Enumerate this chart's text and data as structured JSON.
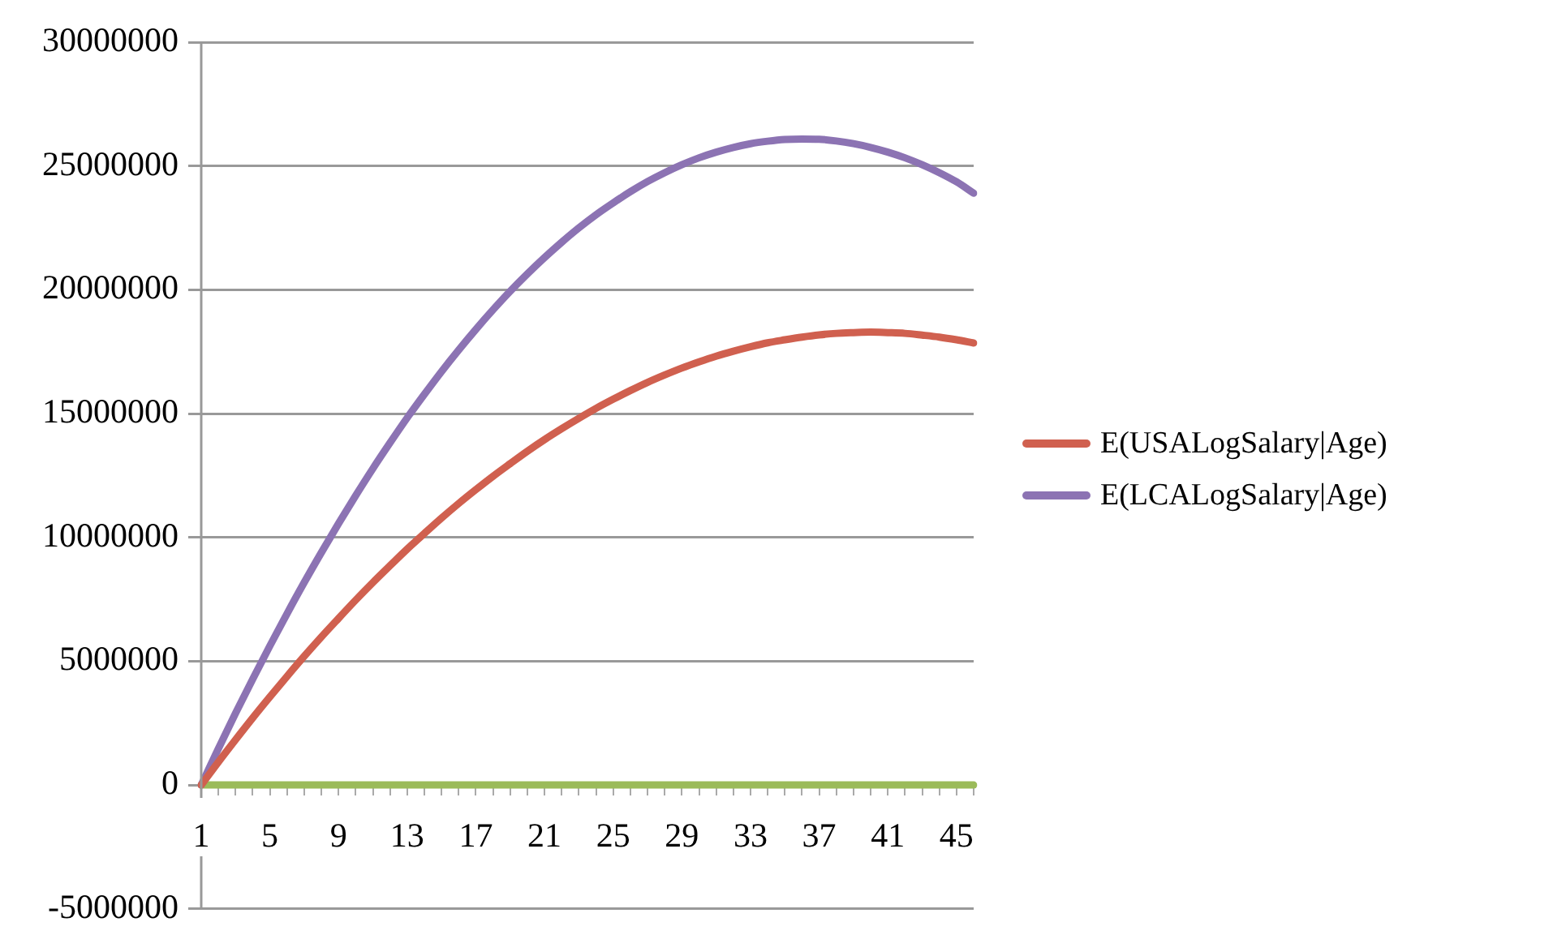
{
  "chart_data": {
    "type": "line",
    "categories": [
      "1",
      null,
      null,
      null,
      "5",
      null,
      null,
      null,
      "9",
      null,
      null,
      null,
      "13",
      null,
      null,
      null,
      "17",
      null,
      null,
      null,
      "21",
      null,
      null,
      null,
      "25",
      null,
      null,
      null,
      "29",
      null,
      null,
      null,
      "33",
      null,
      null,
      null,
      "37",
      null,
      null,
      null,
      "41",
      null,
      null,
      null,
      "45",
      null
    ],
    "series": [
      {
        "name": "E(USALogSalary|Age)",
        "color": "#d0604f",
        "values": [
          0,
          930000,
          1830000,
          2710000,
          3560000,
          4390000,
          5200000,
          5980000,
          6730000,
          7470000,
          8180000,
          8860000,
          9530000,
          10160000,
          10780000,
          11370000,
          11930000,
          12470000,
          12980000,
          13480000,
          13950000,
          14390000,
          14810000,
          15210000,
          15580000,
          15930000,
          16260000,
          16560000,
          16840000,
          17090000,
          17320000,
          17520000,
          17700000,
          17860000,
          17980000,
          18090000,
          18180000,
          18240000,
          18270000,
          18290000,
          18270000,
          18240000,
          18170000,
          18090000,
          17980000,
          17850000
        ]
      },
      {
        "name": "E(LCALogSalary|Age)",
        "color": "#8c73b3",
        "values": [
          0,
          1470000,
          2900000,
          4280000,
          5620000,
          6920000,
          8180000,
          9390000,
          10560000,
          11690000,
          12780000,
          13820000,
          14830000,
          15780000,
          16700000,
          17570000,
          18400000,
          19190000,
          19940000,
          20640000,
          21300000,
          21920000,
          22500000,
          23030000,
          23510000,
          23960000,
          24370000,
          24730000,
          25050000,
          25330000,
          25560000,
          25750000,
          25900000,
          26000000,
          26070000,
          26090000,
          26080000,
          26010000,
          25900000,
          25750000,
          25560000,
          25330000,
          25050000,
          24730000,
          24360000,
          23900000
        ]
      },
      {
        "color": "#9bbb59",
        "values": [
          0,
          0,
          0,
          0,
          0,
          0,
          0,
          0,
          0,
          0,
          0,
          0,
          0,
          0,
          0,
          0,
          0,
          0,
          0,
          0,
          0,
          0,
          0,
          0,
          0,
          0,
          0,
          0,
          0,
          0,
          0,
          0,
          0,
          0,
          0,
          0,
          0,
          0,
          0,
          0,
          0,
          0,
          0,
          0,
          0,
          0
        ]
      }
    ],
    "ylim": [
      -5000000,
      30000000
    ],
    "yticks": [
      -5000000,
      0,
      5000000,
      10000000,
      15000000,
      20000000,
      25000000,
      30000000
    ],
    "grid": "y",
    "legend": "right",
    "marker": "none",
    "line_style": "solid"
  }
}
